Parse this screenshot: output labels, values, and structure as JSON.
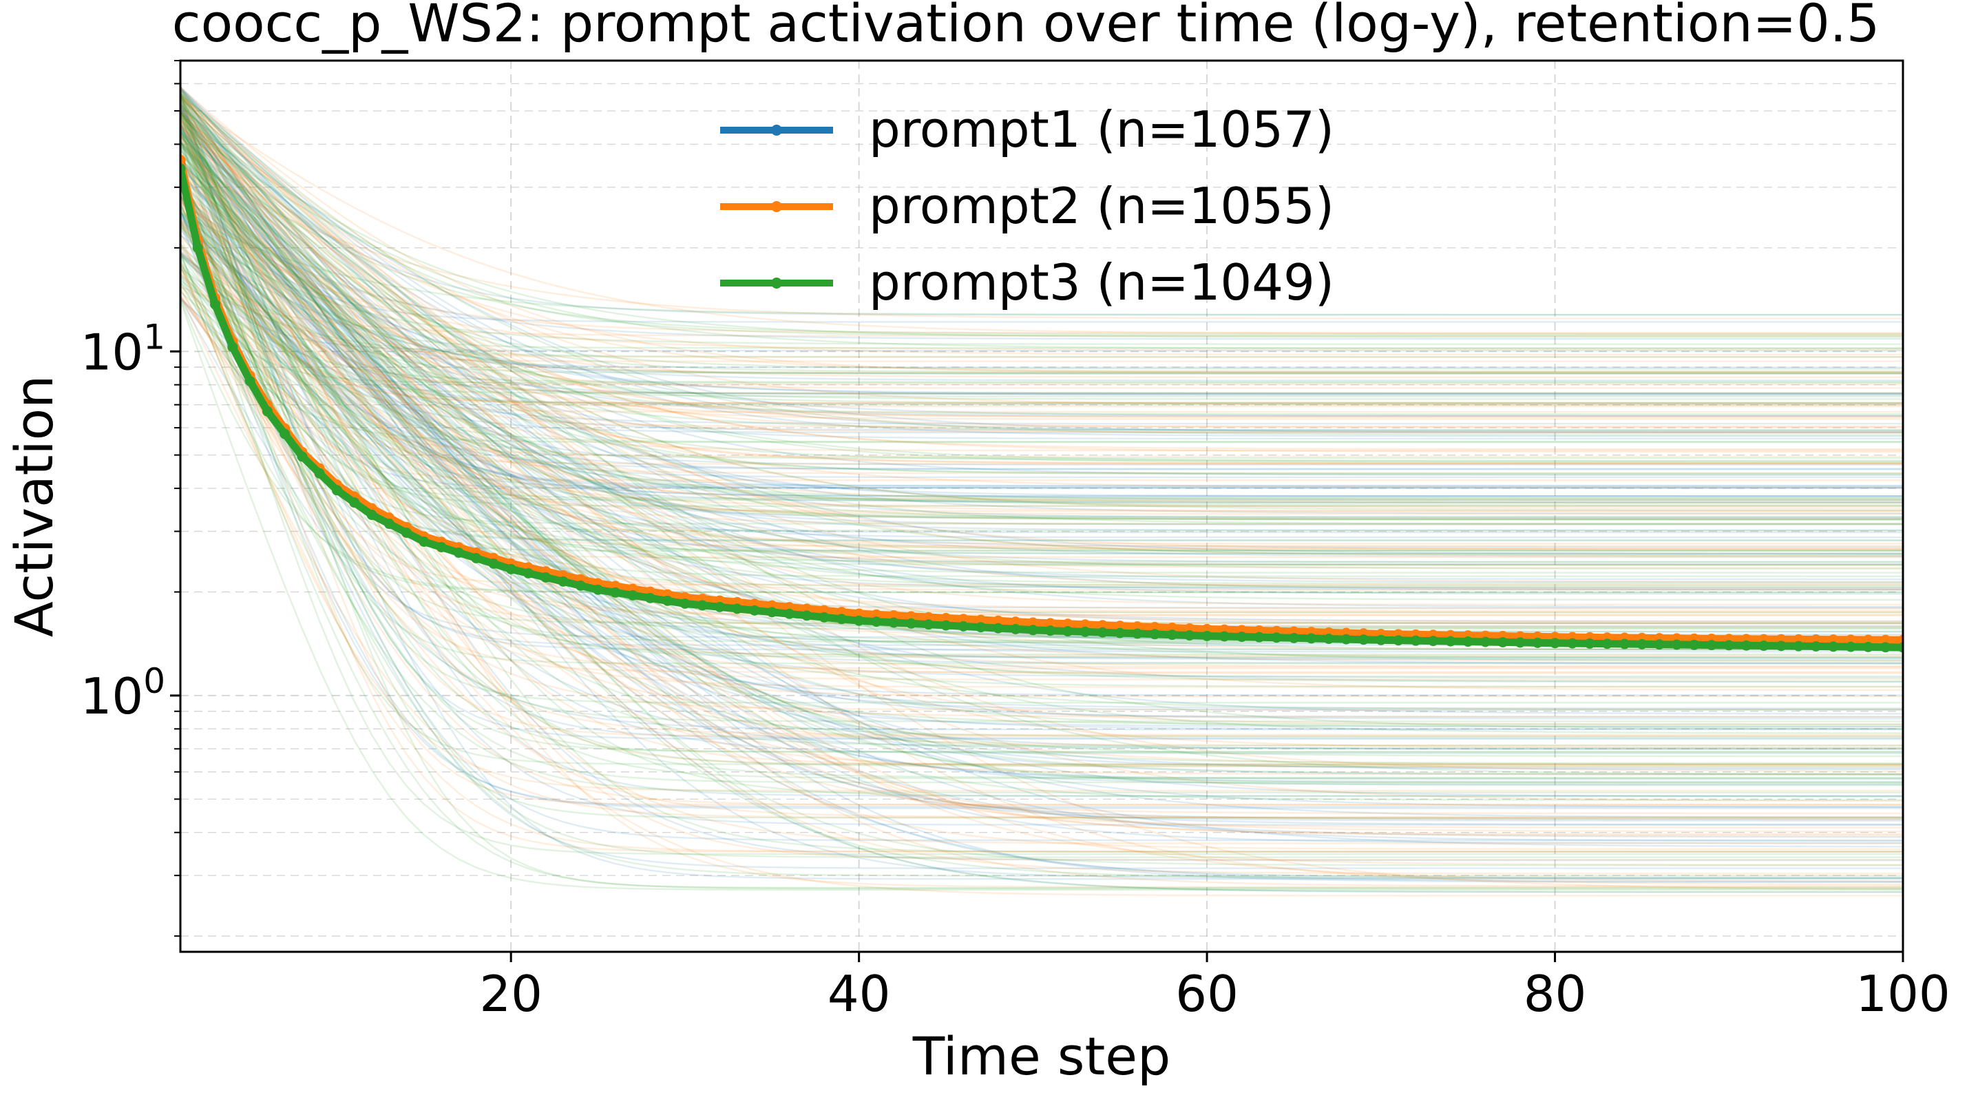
{
  "chart_data": {
    "type": "line",
    "title": "coocc_p_WS2: prompt activation over time (log-y), retention=0.5",
    "xlabel": "Time step",
    "ylabel": "Activation",
    "xlim": [
      1,
      100
    ],
    "ylim": [
      0.18,
      70
    ],
    "yscale": "log",
    "x_ticks": [
      20,
      40,
      60,
      80,
      100
    ],
    "y_ticks": [
      {
        "value": 1,
        "label": "10^0"
      },
      {
        "value": 10,
        "label": "10^1"
      }
    ],
    "grid": true,
    "legend_position": "upper-center",
    "series": [
      {
        "name": "prompt1 (n=1057)",
        "color": "#1f77b4",
        "x": [
          1,
          2,
          3,
          4,
          5,
          6,
          8,
          10,
          12,
          15,
          20,
          25,
          30,
          40,
          50,
          60,
          70,
          80,
          90,
          100
        ],
        "values": [
          35,
          20.5,
          14.0,
          10.5,
          8.3,
          6.8,
          5.0,
          4.0,
          3.4,
          2.85,
          2.38,
          2.08,
          1.9,
          1.7,
          1.6,
          1.53,
          1.49,
          1.46,
          1.44,
          1.43
        ]
      },
      {
        "name": "prompt2 (n=1055)",
        "color": "#ff7f0e",
        "x": [
          1,
          2,
          3,
          4,
          5,
          6,
          8,
          10,
          12,
          15,
          20,
          25,
          30,
          40,
          50,
          60,
          70,
          80,
          90,
          100
        ],
        "values": [
          36,
          21,
          14.3,
          10.7,
          8.5,
          7.0,
          5.1,
          4.1,
          3.5,
          2.9,
          2.42,
          2.12,
          1.93,
          1.73,
          1.63,
          1.56,
          1.51,
          1.48,
          1.46,
          1.45
        ]
      },
      {
        "name": "prompt3 (n=1049)",
        "color": "#2ca02c",
        "x": [
          1,
          2,
          3,
          4,
          5,
          6,
          8,
          10,
          12,
          15,
          20,
          25,
          30,
          40,
          50,
          60,
          70,
          80,
          90,
          100
        ],
        "values": [
          34,
          20,
          13.7,
          10.3,
          8.2,
          6.7,
          4.95,
          3.95,
          3.35,
          2.8,
          2.33,
          2.03,
          1.85,
          1.65,
          1.55,
          1.49,
          1.45,
          1.42,
          1.4,
          1.38
        ]
      }
    ]
  }
}
